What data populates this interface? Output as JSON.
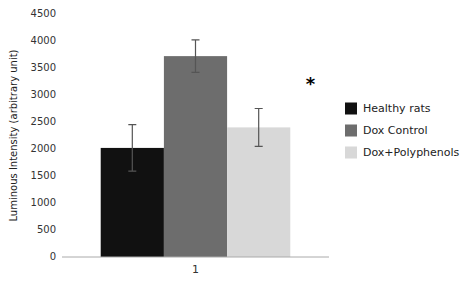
{
  "chart_data": {
    "type": "bar",
    "ylabel": "Luminous Intensity (arbitrary unit)",
    "categories": [
      "1"
    ],
    "series": [
      {
        "name": "Healthy rats",
        "color": "#111111",
        "values": [
          2020
        ],
        "errors": [
          430
        ]
      },
      {
        "name": "Dox Control",
        "color": "#6d6d6d",
        "values": [
          3720
        ],
        "errors": [
          300
        ]
      },
      {
        "name": "Dox+Polyphenols",
        "color": "#d8d8d8",
        "values": [
          2400
        ],
        "errors": [
          350
        ]
      }
    ],
    "annotations": [
      {
        "text": "*",
        "y": 3100
      }
    ],
    "ylim": [
      0,
      4500
    ],
    "yticks": [
      0,
      500,
      1000,
      1500,
      2000,
      2500,
      3000,
      3500,
      4000,
      4500
    ],
    "grid": false,
    "legend": "right"
  }
}
